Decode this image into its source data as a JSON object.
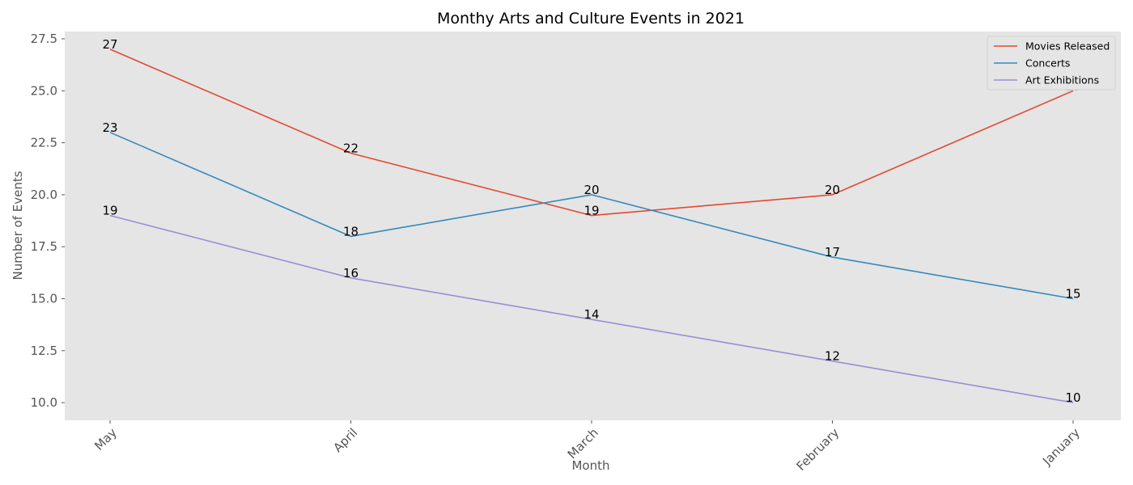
{
  "chart_data": {
    "type": "line",
    "title": "Monthy Arts and Culture Events in 2021",
    "xlabel": "Month",
    "ylabel": "Number of Events",
    "categories": [
      "May",
      "April",
      "March",
      "February",
      "January"
    ],
    "series": [
      {
        "name": "Movies Released",
        "color": "#E24A33",
        "values": [
          27,
          22,
          19,
          20,
          25
        ]
      },
      {
        "name": "Concerts",
        "color": "#348ABD",
        "values": [
          23,
          18,
          20,
          17,
          15
        ]
      },
      {
        "name": "Art Exhibitions",
        "color": "#988ED5",
        "values": [
          19,
          16,
          14,
          12,
          10
        ]
      }
    ],
    "ylim": [
      9.15,
      27.85
    ],
    "yticks": [
      10.0,
      12.5,
      15.0,
      17.5,
      20.0,
      22.5,
      25.0,
      27.5
    ],
    "ytick_labels": [
      "10.0",
      "12.5",
      "15.0",
      "17.5",
      "20.0",
      "22.5",
      "25.0",
      "27.5"
    ],
    "grid": false,
    "legend_position": "top-right",
    "plot_background": "#E5E5E5"
  }
}
